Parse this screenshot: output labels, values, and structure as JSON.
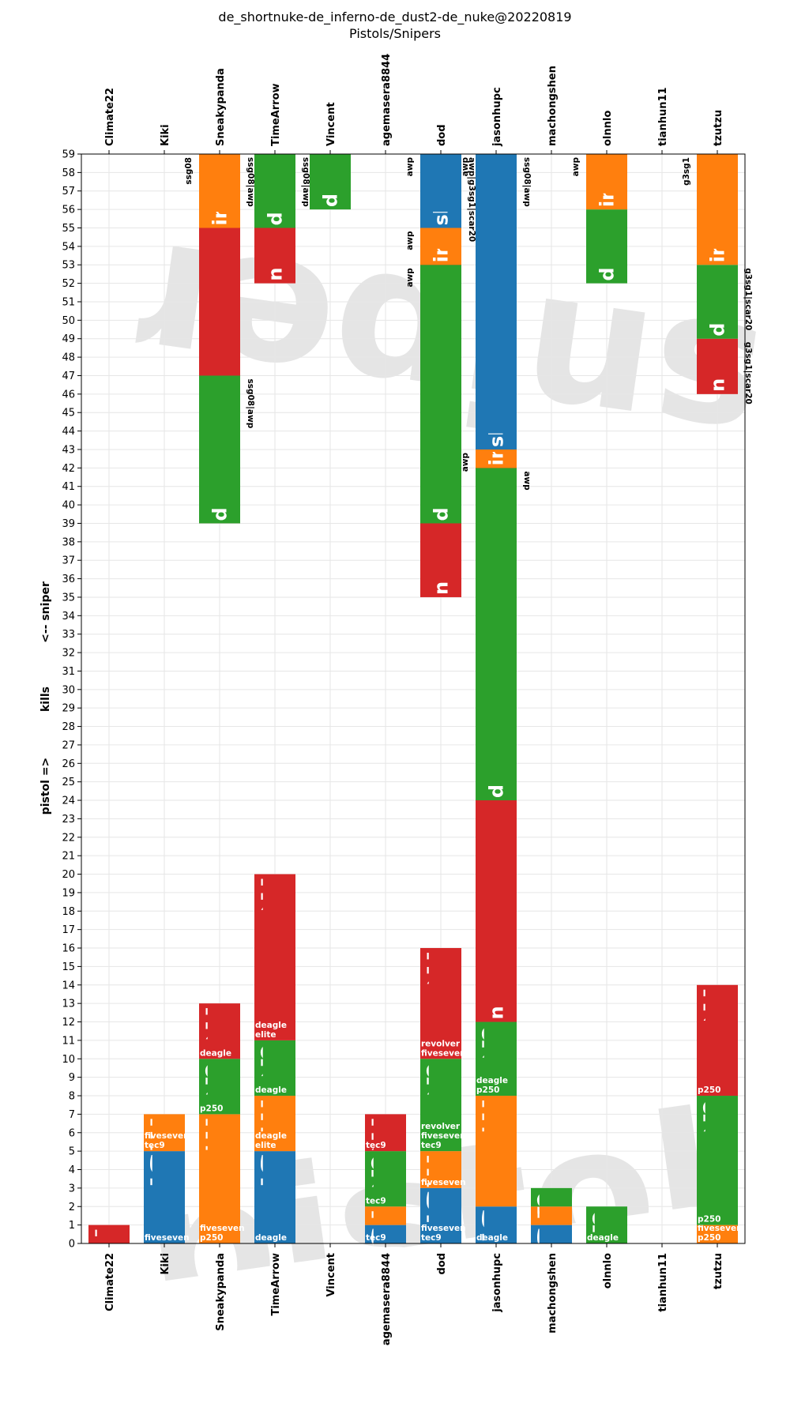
{
  "chart_data": {
    "type": "bar",
    "title": "de_shortnuke-de_inferno-de_dust2-de_nuke@20220819",
    "subtitle": "Pistols/Snipers",
    "ylabel_parts": [
      "<-- sniper",
      "kills",
      "pistol =>"
    ],
    "ylim": [
      0,
      59
    ],
    "yticks": [
      0,
      1,
      2,
      3,
      4,
      5,
      6,
      7,
      8,
      9,
      10,
      11,
      12,
      13,
      14,
      15,
      16,
      17,
      18,
      19,
      20,
      21,
      22,
      23,
      24,
      25,
      26,
      27,
      28,
      29,
      30,
      31,
      32,
      33,
      34,
      35,
      36,
      37,
      38,
      39,
      40,
      41,
      42,
      43,
      44,
      45,
      46,
      47,
      48,
      49,
      50,
      51,
      52,
      53,
      54,
      55,
      56,
      57,
      58,
      59
    ],
    "grid": true,
    "categories": [
      "Climate22",
      "Kiki",
      "Sneakypanda",
      "TimeArrow",
      "Vincent",
      "agemasera8844",
      "dod",
      "jasonhupc",
      "machongshen",
      "olnnlo",
      "tianhun11",
      "tzutzu"
    ],
    "map_colors": {
      "shortnuke": "#1f77b4",
      "inferno": "#ff7f0e",
      "dust2": "#2ca02c",
      "nuke": "#d62728"
    },
    "watermarks": {
      "pistol": "pistol",
      "sniper": "sniper"
    },
    "pistol_segments": [
      {
        "player": "Climate22",
        "map": "nuke",
        "start": 0,
        "end": 1,
        "label": "n",
        "weapons": ""
      },
      {
        "player": "Kiki",
        "map": "shortnuke",
        "start": 0,
        "end": 5,
        "label": "short",
        "weapons": "fiveseven"
      },
      {
        "player": "Kiki",
        "map": "inferno",
        "start": 5,
        "end": 7,
        "label": "in",
        "weapons": "fiveseven\ntec9"
      },
      {
        "player": "Sneakypanda",
        "map": "inferno",
        "start": 0,
        "end": 7,
        "label": "inferno",
        "weapons": "fiveseven\np250"
      },
      {
        "player": "Sneakypanda",
        "map": "dust2",
        "start": 7,
        "end": 10,
        "label": "du",
        "weapons": "p250"
      },
      {
        "player": "Sneakypanda",
        "map": "nuke",
        "start": 10,
        "end": 13,
        "label": "nu",
        "weapons": "deagle"
      },
      {
        "player": "TimeArrow",
        "map": "shortnuke",
        "start": 0,
        "end": 5,
        "label": "short",
        "weapons": "deagle"
      },
      {
        "player": "TimeArrow",
        "map": "inferno",
        "start": 5,
        "end": 8,
        "label": "inf",
        "weapons": "deagle\nelite"
      },
      {
        "player": "TimeArrow",
        "map": "dust2",
        "start": 8,
        "end": 11,
        "label": "du",
        "weapons": "deagle"
      },
      {
        "player": "TimeArrow",
        "map": "nuke",
        "start": 11,
        "end": 20,
        "label": "nuke",
        "weapons": "deagle\nelite"
      },
      {
        "player": "agemasera8844",
        "map": "shortnuke",
        "start": 0,
        "end": 1,
        "label": "s",
        "weapons": "tec9"
      },
      {
        "player": "agemasera8844",
        "map": "inferno",
        "start": 1,
        "end": 2,
        "label": "i",
        "weapons": ""
      },
      {
        "player": "agemasera8844",
        "map": "dust2",
        "start": 2,
        "end": 5,
        "label": "du",
        "weapons": "tec9"
      },
      {
        "player": "agemasera8844",
        "map": "nuke",
        "start": 5,
        "end": 7,
        "label": "nu",
        "weapons": "tec9"
      },
      {
        "player": "dod",
        "map": "shortnuke",
        "start": 0,
        "end": 3,
        "label": "sho",
        "weapons": "fiveseven\ntec9"
      },
      {
        "player": "dod",
        "map": "inferno",
        "start": 3,
        "end": 5,
        "label": "in",
        "weapons": "fiveseven"
      },
      {
        "player": "dod",
        "map": "dust2",
        "start": 5,
        "end": 10,
        "label": "dus",
        "weapons": "revolver\nfiveseven\ntec9"
      },
      {
        "player": "dod",
        "map": "nuke",
        "start": 10,
        "end": 16,
        "label": "nuke",
        "weapons": "revolver\nfiveseven"
      },
      {
        "player": "jasonhupc",
        "map": "shortnuke",
        "start": 0,
        "end": 2,
        "label": "sh",
        "weapons": "deagle"
      },
      {
        "player": "jasonhupc",
        "map": "inferno",
        "start": 2,
        "end": 8,
        "label": "infern",
        "weapons": ""
      },
      {
        "player": "jasonhupc",
        "map": "dust2",
        "start": 8,
        "end": 12,
        "label": "dus",
        "weapons": "deagle\np250"
      },
      {
        "player": "jasonhupc",
        "map": "nuke",
        "start": 12,
        "end": 15,
        "label": "nu",
        "weapons": "p250"
      },
      {
        "player": "machongshen",
        "map": "shortnuke",
        "start": 0,
        "end": 1,
        "label": "s",
        "weapons": ""
      },
      {
        "player": "machongshen",
        "map": "inferno",
        "start": 1,
        "end": 2,
        "label": "i",
        "weapons": ""
      },
      {
        "player": "machongshen",
        "map": "dust2",
        "start": 2,
        "end": 3,
        "label": "d",
        "weapons": ""
      },
      {
        "player": "olnnlo",
        "map": "dust2",
        "start": 0,
        "end": 2,
        "label": "d",
        "weapons": "deagle"
      },
      {
        "player": "tzutzu",
        "map": "inferno",
        "start": 0,
        "end": 1,
        "label": "",
        "weapons": "fiveseven\np250"
      },
      {
        "player": "tzutzu",
        "map": "dust2",
        "start": 1,
        "end": 8,
        "label": "dust2",
        "weapons": "p250"
      },
      {
        "player": "tzutzu",
        "map": "nuke",
        "start": 8,
        "end": 14,
        "label": "nuke",
        "weapons": "p250"
      }
    ],
    "sniper_segments": [
      {
        "player": "Sneakypanda",
        "map": "nuke",
        "start": 59,
        "end": 39,
        "label": "nuke",
        "weapons": "ssg08|awp"
      },
      {
        "player": "Sneakypanda",
        "map": "dust2",
        "start": 47,
        "end": 39,
        "label": "dust2",
        "weapons": "ssg08|awp"
      },
      {
        "player": "Sneakypanda",
        "map": "inferno",
        "start": 59,
        "end": 55,
        "label": "inferno",
        "weapons": "ssg08"
      },
      {
        "player": "TimeArrow",
        "map": "nuke",
        "start": 59,
        "end": 52,
        "label": "nuke",
        "weapons": ""
      },
      {
        "player": "TimeArrow",
        "map": "dust2",
        "start": 59,
        "end": 55,
        "label": "dust2",
        "weapons": "ssg08|awp"
      },
      {
        "player": "Vincent",
        "map": "dust2",
        "start": 59,
        "end": 56,
        "label": "dust2",
        "weapons": ""
      },
      {
        "player": "dod",
        "map": "nuke",
        "start": 59,
        "end": 35,
        "label": "nuke",
        "weapons": "awp|g3sg1|scar20"
      },
      {
        "player": "dod",
        "map": "dust2",
        "start": 53,
        "end": 39,
        "label": "dust2",
        "weapons": "awp"
      },
      {
        "player": "dod",
        "map": "inferno",
        "start": 55,
        "end": 53,
        "label": "infe",
        "weapons": "awp"
      },
      {
        "player": "dod",
        "map": "shortnuke",
        "start": 59,
        "end": 55,
        "label": "shortnu",
        "weapons": "awp"
      },
      {
        "player": "jasonhupc",
        "map": "nuke",
        "start": 59,
        "end": 12,
        "label": "nuke",
        "weapons": "ssg08|awp"
      },
      {
        "player": "jasonhupc",
        "map": "dust2",
        "start": 42,
        "end": 24,
        "label": "dust2",
        "weapons": "awp"
      },
      {
        "player": "jasonhupc",
        "map": "inferno",
        "start": 43,
        "end": 42,
        "label": "in",
        "weapons": "awp"
      },
      {
        "player": "jasonhupc",
        "map": "shortnuke",
        "start": 59,
        "end": 43,
        "label": "shortnuke",
        "weapons": "awp"
      },
      {
        "player": "olnnlo",
        "map": "dust2",
        "start": 56,
        "end": 52,
        "label": "dust2",
        "weapons": ""
      },
      {
        "player": "olnnlo",
        "map": "inferno",
        "start": 59,
        "end": 56,
        "label": "infern",
        "weapons": "awp"
      },
      {
        "player": "tzutzu",
        "map": "nuke",
        "start": 49,
        "end": 46,
        "label": "nuke",
        "weapons": "g3sg1|scar20"
      },
      {
        "player": "tzutzu",
        "map": "dust2",
        "start": 53,
        "end": 49,
        "label": "dust2",
        "weapons": "g3sg1|scar20"
      },
      {
        "player": "tzutzu",
        "map": "inferno",
        "start": 59,
        "end": 53,
        "label": "inferno",
        "weapons": "g3sg1"
      }
    ]
  }
}
